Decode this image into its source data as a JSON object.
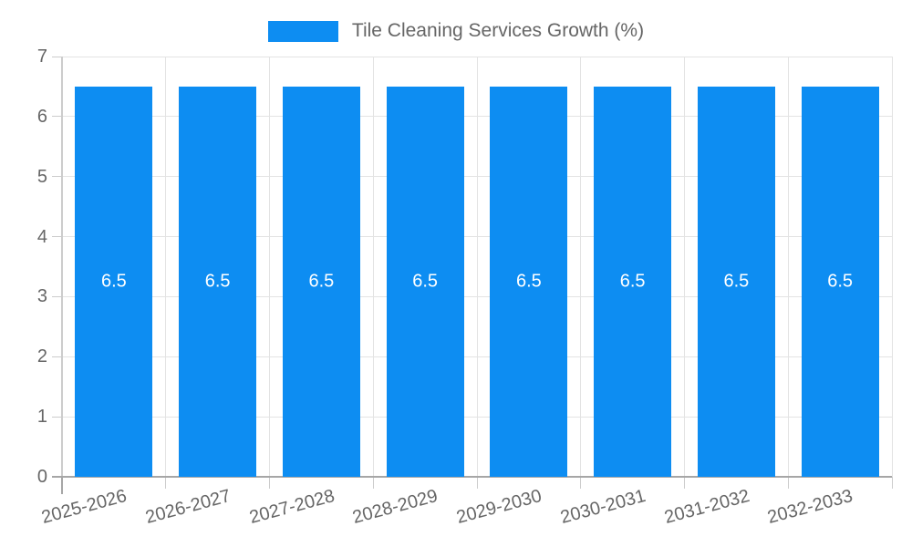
{
  "legend": {
    "label": "Tile Cleaning Services Growth (%)"
  },
  "colors": {
    "bar": "#0d8df2",
    "bar_label": "#ffffff",
    "grid": "#e3e3e3",
    "axis_x": "#a6a6a6",
    "axis_y": "#cccccc",
    "tick": "#cccccc",
    "tick_text": "#666666",
    "legend_text": "#666666"
  },
  "chart_data": {
    "type": "bar",
    "title": "Tile Cleaning Services Growth (%)",
    "categories": [
      "2025-2026",
      "2026-2027",
      "2027-2028",
      "2028-2029",
      "2029-2030",
      "2030-2031",
      "2031-2032",
      "2032-2033"
    ],
    "values": [
      6.5,
      6.5,
      6.5,
      6.5,
      6.5,
      6.5,
      6.5,
      6.5
    ],
    "bar_value_labels": [
      "6.5",
      "6.5",
      "6.5",
      "6.5",
      "6.5",
      "6.5",
      "6.5",
      "6.5"
    ],
    "xlabel": "",
    "ylabel": "",
    "ylim": [
      0,
      7
    ],
    "yticks": [
      0,
      1,
      2,
      3,
      4,
      5,
      6,
      7
    ],
    "grid": true,
    "legend_position": "top",
    "value_label_position": "center"
  }
}
